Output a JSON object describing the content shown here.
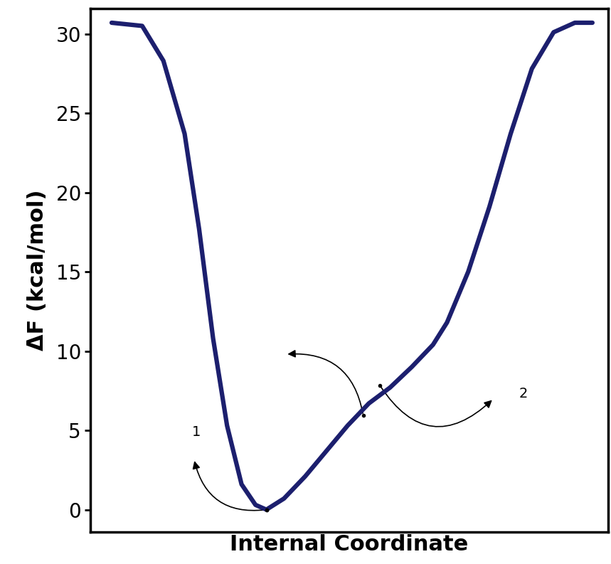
{
  "chart_data": {
    "type": "line",
    "y_label": "ΔF (kcal/mol)",
    "x_label": "Internal Coordinate",
    "x": [
      0.041,
      0.1,
      0.141,
      0.182,
      0.21,
      0.237,
      0.264,
      0.292,
      0.319,
      0.34,
      0.374,
      0.415,
      0.456,
      0.497,
      0.538,
      0.579,
      0.621,
      0.662,
      0.689,
      0.73,
      0.771,
      0.812,
      0.853,
      0.895,
      0.936,
      0.97
    ],
    "values": [
      30.7,
      30.5,
      28.3,
      23.7,
      17.7,
      10.8,
      5.3,
      1.6,
      0.3,
      0.0,
      0.7,
      2.1,
      3.7,
      5.3,
      6.7,
      7.7,
      9.0,
      10.4,
      11.8,
      15.0,
      19.1,
      23.7,
      27.8,
      30.1,
      30.7,
      30.7
    ],
    "color": "#1c1f6e",
    "xlim": [
      0,
      1
    ],
    "ylim": [
      -1.4,
      31.6
    ],
    "yticks": [
      0,
      5,
      10,
      15,
      20,
      25,
      30
    ],
    "tick_labels": "y",
    "annotations": [
      {
        "text": "1",
        "x": 0.205,
        "y": 4.9
      },
      {
        "text": "2",
        "x": 0.837,
        "y": 7.3
      }
    ]
  }
}
